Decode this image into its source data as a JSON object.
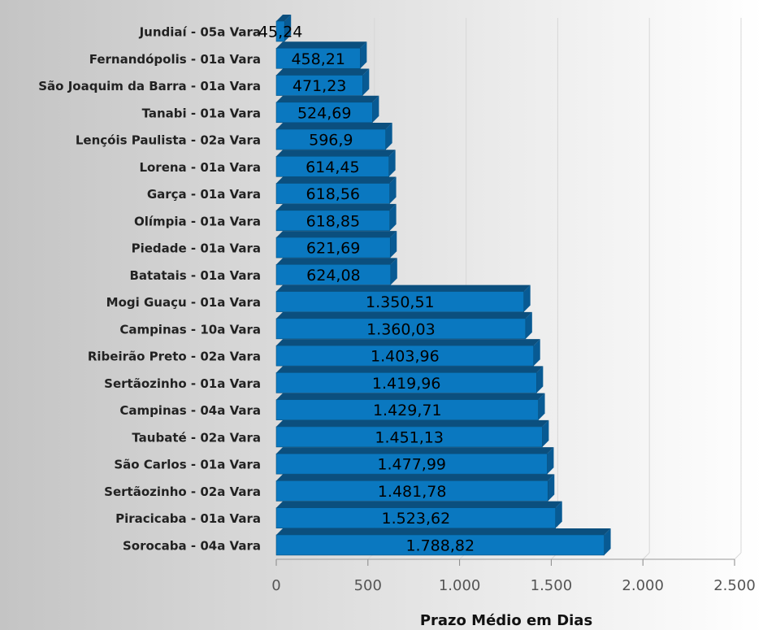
{
  "chart_data": {
    "type": "bar",
    "orientation": "horizontal",
    "x_label": "Prazo Médio em Dias",
    "categories": [
      "Jundiaí - 05a Vara",
      "Fernandópolis - 01a Vara",
      "São Joaquim da Barra - 01a Vara",
      "Tanabi - 01a Vara",
      "Lençóis Paulista - 02a Vara",
      "Lorena - 01a Vara",
      "Garça - 01a Vara",
      "Olímpia - 01a Vara",
      "Piedade - 01a Vara",
      "Batatais - 01a Vara",
      "Mogi Guaçu - 01a Vara",
      "Campinas - 10a Vara",
      "Ribeirão Preto - 02a Vara",
      "Sertãozinho - 01a Vara",
      "Campinas - 04a Vara",
      "Taubaté - 02a Vara",
      "São Carlos - 01a Vara",
      "Sertãozinho - 02a Vara",
      "Piracicaba - 01a Vara",
      "Sorocaba - 04a Vara"
    ],
    "values": [
      45.24,
      458.21,
      471.23,
      524.69,
      596.9,
      614.45,
      618.56,
      618.85,
      621.69,
      624.08,
      1350.51,
      1360.03,
      1403.96,
      1419.96,
      1429.71,
      1451.13,
      1477.99,
      1481.78,
      1523.62,
      1788.82
    ],
    "value_labels": [
      "45,24",
      "458,21",
      "471,23",
      "524,69",
      "596,9",
      "614,45",
      "618,56",
      "618,85",
      "621,69",
      "624,08",
      "1.350,51",
      "1.360,03",
      "1.403,96",
      "1.419,96",
      "1.429,71",
      "1.451,13",
      "1.477,99",
      "1.481,78",
      "1.523,62",
      "1.788,82"
    ],
    "color": "#0a78c0",
    "xlim": [
      0,
      2500
    ],
    "xticks": [
      0,
      500,
      {
        "value": 1000,
        "label": "1.000"
      },
      {
        "value": 1500,
        "label": "1.500"
      },
      {
        "value": 2000,
        "label": "2.000"
      },
      {
        "value": 2500,
        "label": "2.500"
      }
    ],
    "grid": true
  }
}
